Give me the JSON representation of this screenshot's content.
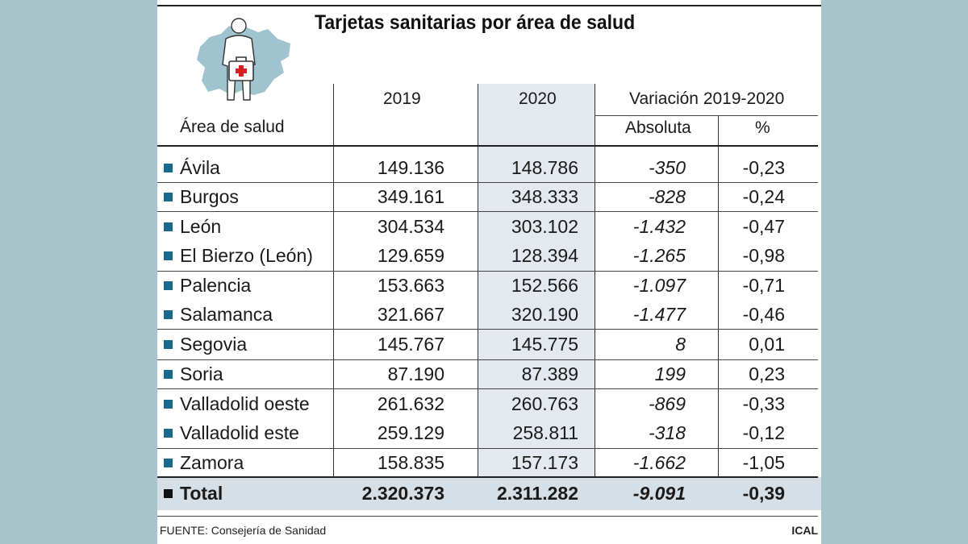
{
  "title": "Tarjetas sanitarias por área de salud",
  "headers": {
    "area": "Área de salud",
    "y2019": "2019",
    "y2020": "2020",
    "variation": "Variación 2019-2020",
    "absolute": "Absoluta",
    "percent": "%"
  },
  "rows": [
    {
      "area": "Ávila",
      "y2019": "149.136",
      "y2020": "148.786",
      "abs": "-350",
      "pct": "-0,23"
    },
    {
      "area": "Burgos",
      "y2019": "349.161",
      "y2020": "348.333",
      "abs": "-828",
      "pct": "-0,24"
    },
    {
      "area": "León",
      "y2019": "304.534",
      "y2020": "303.102",
      "abs": "-1.432",
      "pct": "-0,47"
    },
    {
      "area": "El Bierzo (León)",
      "y2019": "129.659",
      "y2020": "128.394",
      "abs": "-1.265",
      "pct": "-0,98"
    },
    {
      "area": "Palencia",
      "y2019": "153.663",
      "y2020": "152.566",
      "abs": "-1.097",
      "pct": "-0,71"
    },
    {
      "area": "Salamanca",
      "y2019": "321.667",
      "y2020": "320.190",
      "abs": "-1.477",
      "pct": "-0,46"
    },
    {
      "area": "Segovia",
      "y2019": "145.767",
      "y2020": "145.775",
      "abs": "8",
      "pct": "0,01"
    },
    {
      "area": "Soria",
      "y2019": "87.190",
      "y2020": "87.389",
      "abs": "199",
      "pct": "0,23"
    },
    {
      "area": "Valladolid oeste",
      "y2019": "261.632",
      "y2020": "260.763",
      "abs": "-869",
      "pct": "-0,33"
    },
    {
      "area": "Valladolid este",
      "y2019": "259.129",
      "y2020": "258.811",
      "abs": "-318",
      "pct": "-0,12"
    },
    {
      "area": "Zamora",
      "y2019": "158.835",
      "y2020": "157.173",
      "abs": "-1.662",
      "pct": "-1,05"
    }
  ],
  "total": {
    "area": "Total",
    "y2019": "2.320.373",
    "y2020": "2.311.282",
    "abs": "-9.091",
    "pct": "-0,39"
  },
  "footer": {
    "source": "FUENTE: Consejería de Sanidad",
    "agency": "ICAL"
  },
  "colors": {
    "background": "#a7c4ca",
    "bullet": "#1b6a8c",
    "shade_2020": "#e3e9ef",
    "total_band": "#d6dee6",
    "map": "#9fc3cf"
  },
  "icons": [
    "castilla-leon-map-icon",
    "doctor-with-medical-kit-icon"
  ],
  "chart_data": {
    "type": "table",
    "title": "Tarjetas sanitarias por área de salud",
    "columns": [
      "Área de salud",
      "2019",
      "2020",
      "Absoluta",
      "%"
    ],
    "rows": [
      [
        "Ávila",
        149136,
        148786,
        -350,
        -0.23
      ],
      [
        "Burgos",
        349161,
        348333,
        -828,
        -0.24
      ],
      [
        "León",
        304534,
        303102,
        -1432,
        -0.47
      ],
      [
        "El Bierzo (León)",
        129659,
        128394,
        -1265,
        -0.98
      ],
      [
        "Palencia",
        153663,
        152566,
        -1097,
        -0.71
      ],
      [
        "Salamanca",
        321667,
        320190,
        -1477,
        -0.46
      ],
      [
        "Segovia",
        145767,
        145775,
        8,
        0.01
      ],
      [
        "Soria",
        87190,
        87389,
        199,
        0.23
      ],
      [
        "Valladolid oeste",
        261632,
        260763,
        -869,
        -0.33
      ],
      [
        "Valladolid este",
        259129,
        258811,
        -318,
        -0.12
      ],
      [
        "Zamora",
        158835,
        157173,
        -1662,
        -1.05
      ],
      [
        "Total",
        2320373,
        2311282,
        -9091,
        -0.39
      ]
    ]
  }
}
